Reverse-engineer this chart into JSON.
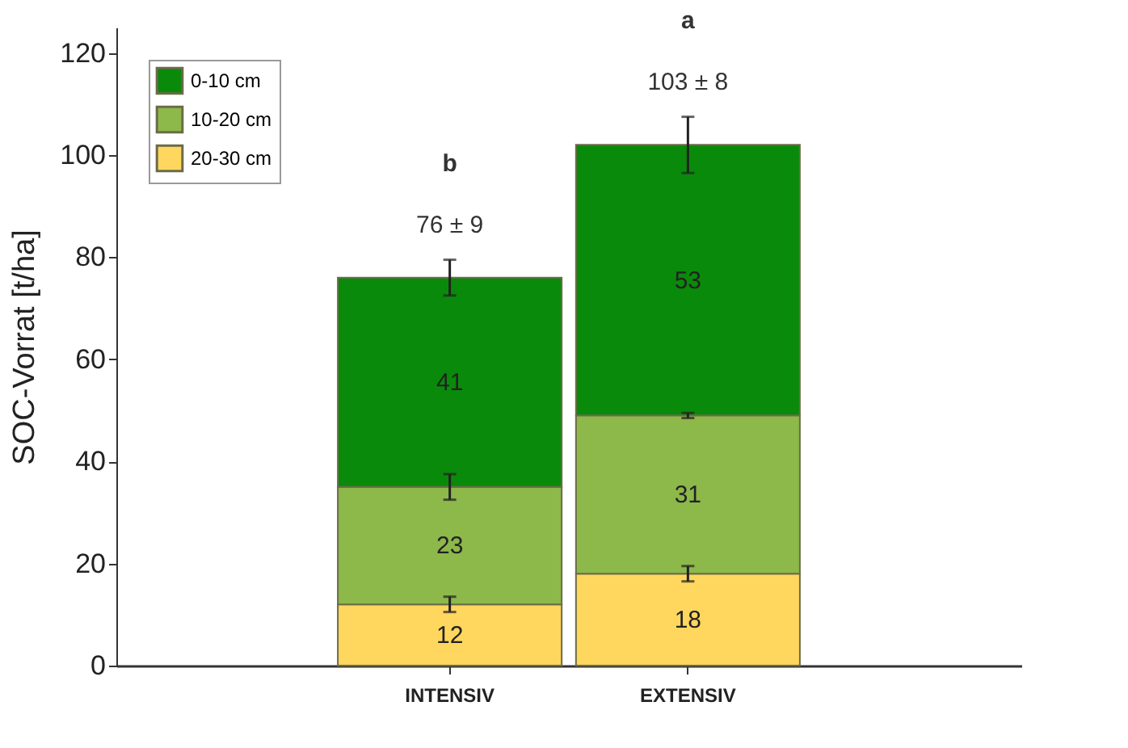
{
  "chart_data": {
    "type": "bar",
    "stacked": true,
    "ylabel": "SOC-Vorrat [t/ha]",
    "categories": [
      "INTENSIV",
      "EXTENSIV"
    ],
    "series": [
      {
        "name": "20-30 cm",
        "color": "#ffd75e",
        "values": [
          12,
          18
        ],
        "errors": [
          1.5,
          1.5
        ]
      },
      {
        "name": "10-20 cm",
        "color": "#8db84a",
        "values": [
          23,
          31
        ],
        "errors": [
          2.5,
          0.5
        ]
      },
      {
        "name": "0-10 cm",
        "color": "#0a8a0a",
        "values": [
          41,
          53
        ],
        "errors": [
          3.5,
          5.5
        ]
      }
    ],
    "ylim": [
      0,
      125
    ],
    "yticks": [
      0,
      20,
      40,
      60,
      80,
      100,
      120
    ],
    "data_labels": true,
    "grid": false,
    "legend": "top left",
    "annotations": [
      "b",
      "76 ± 9",
      "a",
      "103 ± 8"
    ]
  }
}
